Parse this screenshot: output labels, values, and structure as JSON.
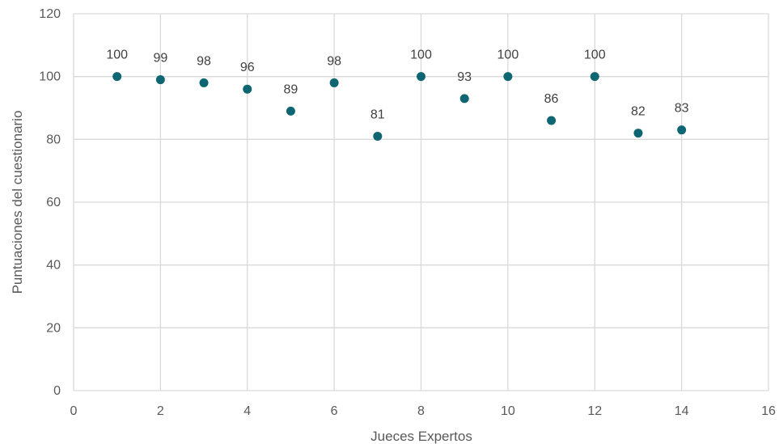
{
  "chart_data": {
    "type": "scatter",
    "title": "",
    "xlabel": "Jueces Expertos",
    "ylabel": "Puntuaciones del cuestionario",
    "xlim": [
      0,
      16
    ],
    "ylim": [
      0,
      120
    ],
    "xticks": [
      0,
      2,
      4,
      6,
      8,
      10,
      12,
      14,
      16
    ],
    "yticks": [
      0,
      20,
      40,
      60,
      80,
      100,
      120
    ],
    "grid": true,
    "legend": "none",
    "marker_color": "#0e6672",
    "series": [
      {
        "x": [
          1,
          2,
          3,
          4,
          5,
          6,
          7,
          8,
          9,
          10,
          11,
          12,
          13,
          14
        ],
        "values": [
          100,
          99,
          98,
          96,
          89,
          98,
          81,
          100,
          93,
          100,
          86,
          100,
          82,
          83
        ],
        "data_labels": [
          "100",
          "99",
          "98",
          "96",
          "89",
          "98",
          "81",
          "100",
          "93",
          "100",
          "86",
          "100",
          "82",
          "83"
        ]
      }
    ]
  }
}
